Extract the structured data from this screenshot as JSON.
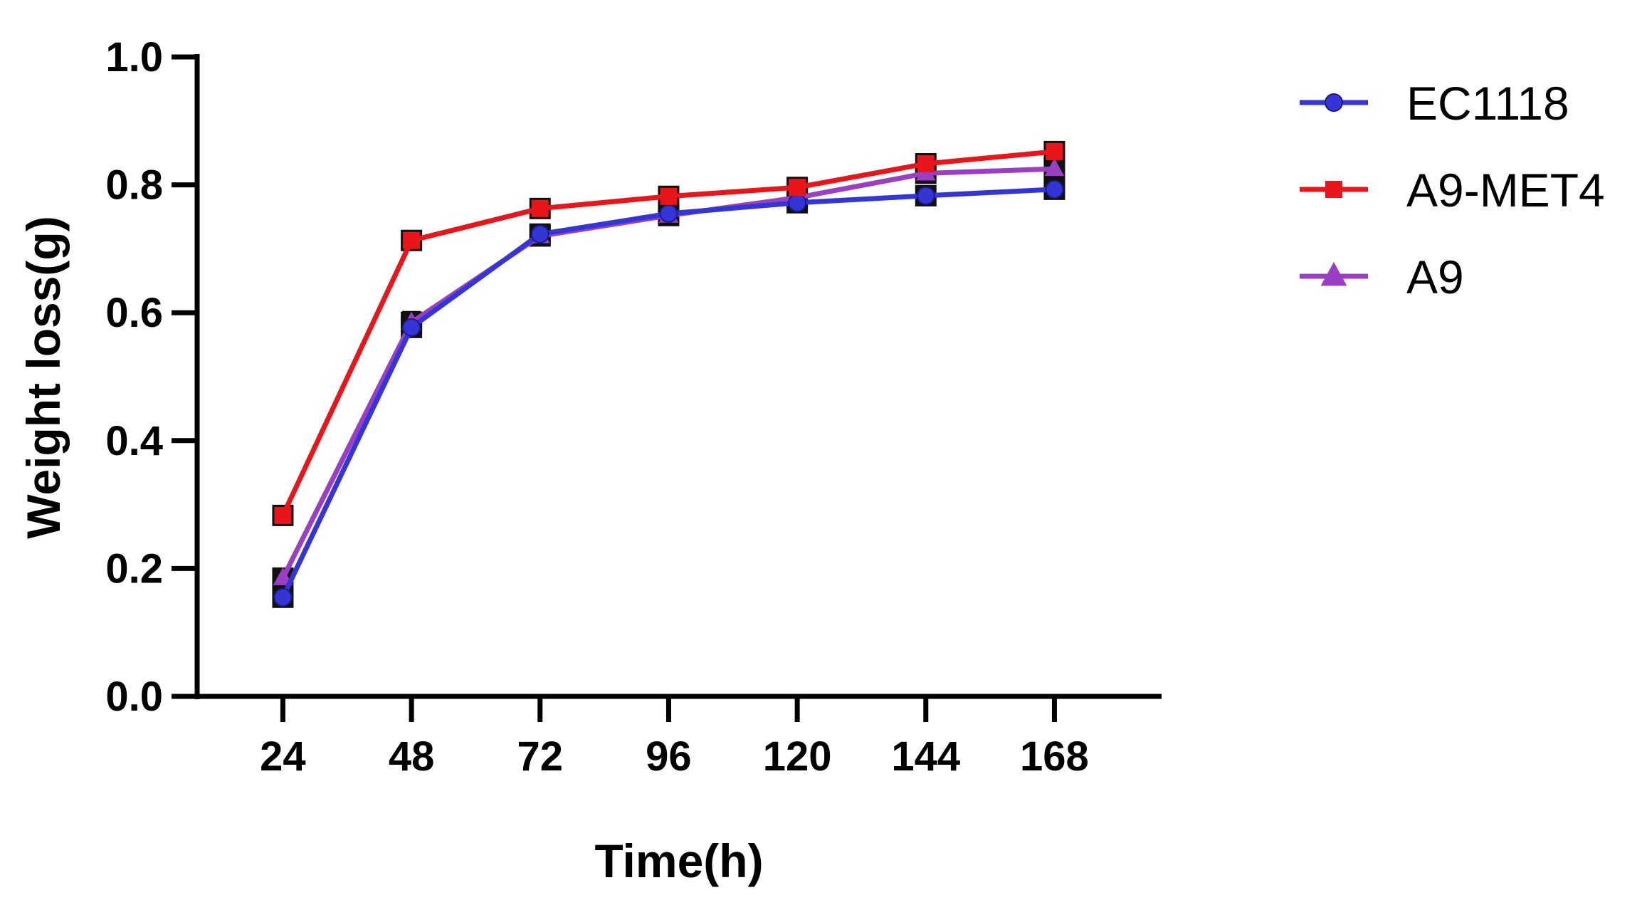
{
  "chart_data": {
    "type": "line",
    "title": "",
    "xlabel": "Time(h)",
    "ylabel": "Weight loss(g)",
    "x": [
      24,
      48,
      72,
      96,
      120,
      144,
      168
    ],
    "x_tick_labels": [
      "24",
      "48",
      "72",
      "96",
      "120",
      "144",
      "168"
    ],
    "xlim": [
      8,
      188
    ],
    "ylim": [
      0,
      1.0
    ],
    "y_ticks": [
      0.0,
      0.2,
      0.4,
      0.6,
      0.8,
      1.0
    ],
    "y_tick_labels": [
      "0.0",
      "0.2",
      "0.4",
      "0.6",
      "0.8",
      "1.0"
    ],
    "grid": false,
    "legend_position": "top-right outside",
    "series": [
      {
        "name": "EC1118",
        "color": "#3535d6",
        "marker": "circle",
        "values": [
          0.155,
          0.577,
          0.723,
          0.755,
          0.772,
          0.783,
          0.793
        ],
        "errors": [
          0.005,
          0.012,
          0.01,
          0.01,
          0.01,
          0.01,
          0.01
        ]
      },
      {
        "name": "A9-MET4",
        "color": "#e8151b",
        "marker": "square",
        "values": [
          0.283,
          0.713,
          0.763,
          0.782,
          0.796,
          0.833,
          0.852
        ],
        "errors": [
          0.012,
          0.01,
          0.01,
          0.01,
          0.01,
          0.01,
          0.01
        ]
      },
      {
        "name": "A9",
        "color": "#9a3fc4",
        "marker": "triangle",
        "values": [
          0.185,
          0.585,
          0.72,
          0.752,
          0.78,
          0.818,
          0.825
        ],
        "errors": [
          0.01,
          0.015,
          0.012,
          0.01,
          0.01,
          0.01,
          0.012
        ]
      }
    ]
  }
}
